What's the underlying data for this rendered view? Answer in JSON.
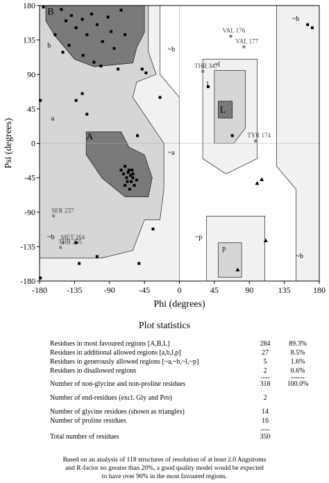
{
  "chart_data": {
    "type": "scatter",
    "x_label": "Phi (degrees)",
    "y_label": "Psi (degrees)",
    "xlim": [
      -180,
      180
    ],
    "ylim": [
      -180,
      180
    ],
    "xticks": [
      -180,
      -135,
      -90,
      -45,
      0,
      45,
      90,
      135,
      180
    ],
    "yticks": [
      -180,
      -135,
      -90,
      -45,
      0,
      45,
      90,
      135,
      180
    ],
    "annotations": [
      "B",
      "b",
      "A",
      "a",
      "L",
      "l",
      "~l",
      "~b",
      "~a",
      "~b",
      "~p",
      "p",
      "~b",
      "~b"
    ],
    "series": [
      {
        "marker": "square",
        "color": "#000000",
        "x": [
          -175,
          -152,
          -146,
          -139,
          -133,
          -125,
          -119,
          -113,
          -106,
          -99,
          -92,
          -88,
          -84,
          -75,
          -124,
          -110,
          -101,
          -142,
          -160,
          -150,
          -79,
          -70,
          -48,
          -43,
          -133,
          -125,
          -119,
          -54,
          -25,
          -179,
          -70,
          -65,
          -60,
          -68,
          -62,
          -58,
          -72,
          -66,
          -64,
          -60,
          -70,
          -55,
          -75,
          -63,
          -67,
          -61,
          -133,
          -106,
          -129,
          -52,
          -179,
          -34,
          37,
          68,
          165,
          171
        ],
        "values": [
          178,
          175,
          160,
          167,
          151,
          162,
          142,
          169,
          155,
          133,
          165,
          146,
          124,
          174,
          115,
          106,
          101,
          128,
          142,
          119,
          97,
          142,
          97,
          92,
          56,
          65,
          38,
          10,
          60,
          56,
          -30,
          -35,
          -40,
          -45,
          -50,
          -55,
          -40,
          -38,
          -60,
          -45,
          -55,
          -48,
          -35,
          -42,
          -50,
          -35,
          -130,
          -148,
          -157,
          -157,
          -176,
          -112,
          74,
          10,
          155,
          151
        ]
      },
      {
        "marker": "triangle",
        "color": "#000000",
        "x": [
          106,
          100,
          75,
          111
        ],
        "values": [
          -47,
          -52,
          -165,
          -127
        ]
      },
      {
        "marker": "square",
        "color": "#7f7f7f",
        "labels": [
          "VAL 176",
          "VAL 177",
          "THR 347",
          "TYR 174",
          "SER 237",
          "MET 264",
          "THR 255"
        ],
        "x": [
          66,
          83,
          30,
          98,
          -162,
          -150,
          -153
        ],
        "values": [
          140,
          126,
          94,
          3,
          -95,
          -130,
          -136
        ]
      }
    ]
  },
  "statistics": {
    "title": "Plot statistics",
    "rows": [
      {
        "label": "Residues in most favoured regions  [A,B,L]",
        "count": "284",
        "percent": "89.3%"
      },
      {
        "label": "Residues in additional allowed regions  [a,b,l,p]",
        "count": "27",
        "percent": "8.5%"
      },
      {
        "label": "Residues in generously allowed regions  [~a,~b,~l,~p]",
        "count": "5",
        "percent": "1.6%"
      },
      {
        "label": "Residues in disallowed regions",
        "count": "2",
        "percent": "0.6%"
      },
      {
        "count": "----",
        "percent": "------"
      },
      {
        "label": "Number of non-glycine and non-proline residues",
        "count": "318",
        "percent": "100.0%"
      },
      {
        "label": "Number of end-residues (excl. Gly and Pro)",
        "count": "2"
      },
      {
        "label": "Number of glycine residues (shown as triangles)",
        "count": "14"
      },
      {
        "label": "Number of proline residues",
        "count": "16"
      },
      {
        "count": "----"
      },
      {
        "label": "Total number of residues",
        "count": "350"
      }
    ],
    "footnote": [
      "Based on an analysis of 118 structures of resolution of at least 2.0 Angstroms",
      "and R-factor no greater than 20%, a good quality model would be expected",
      "to have over 90% in the most favoured regions."
    ]
  }
}
